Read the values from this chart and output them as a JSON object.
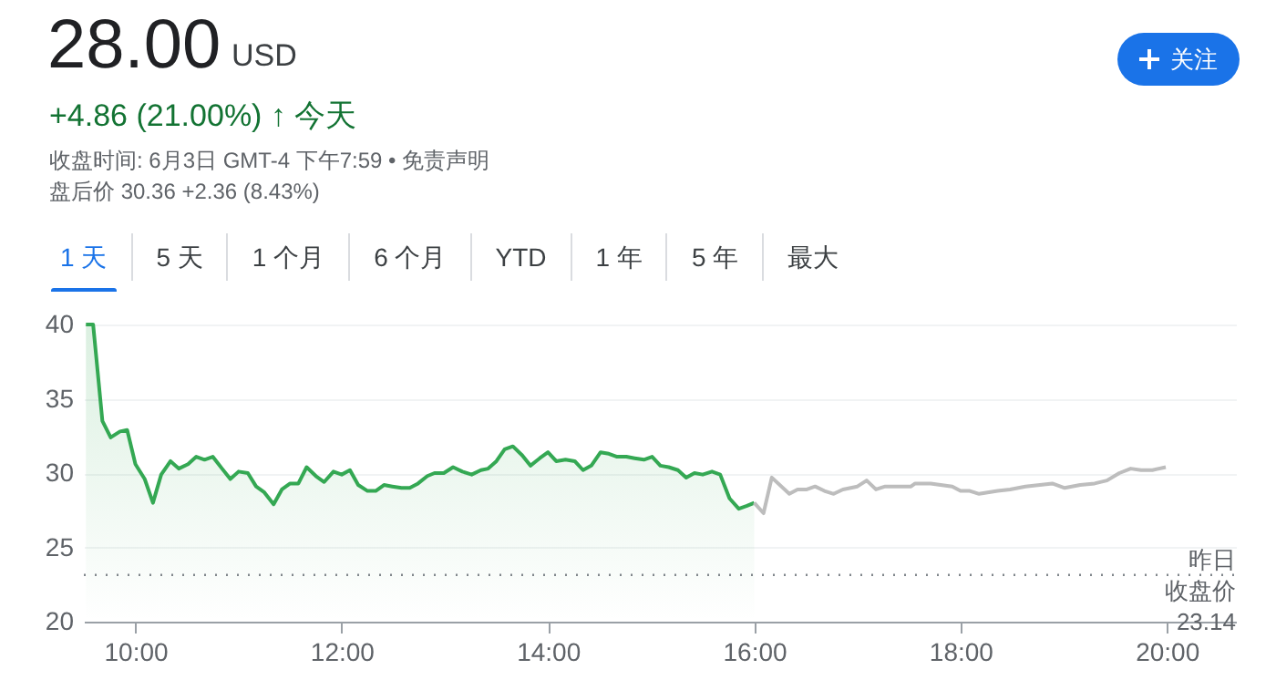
{
  "chart_data": {
    "type": "area",
    "title": "28.00",
    "annotations": [
      "USD",
      "+4.86 (21.00%) ↑ 今天",
      "收盘时间: 6月3日 GMT-4 下午7:59 • 免责声明",
      "盘后价 30.36 +2.36 (8.43%)",
      "关注",
      "1 天",
      "5 天",
      "1 个月",
      "6 个月",
      "YTD",
      "1 年",
      "5 年",
      "最大"
    ],
    "series": [
      {
        "color": "#34a853",
        "x": [
          9.52,
          9.59,
          9.68,
          9.76,
          9.85,
          9.92,
          10.0,
          10.09,
          10.17,
          10.25,
          10.34,
          10.42,
          10.51,
          10.59,
          10.67,
          10.75,
          10.84,
          10.92,
          11.0,
          11.09,
          11.17,
          11.25,
          11.34,
          11.42,
          11.5,
          11.58,
          11.66,
          11.75,
          11.83,
          11.92,
          12.0,
          12.08,
          12.16,
          12.25,
          12.33,
          12.41,
          12.49,
          12.58,
          12.66,
          12.74,
          12.83,
          12.9,
          12.99,
          13.08,
          13.17,
          13.26,
          13.35,
          13.42,
          13.5,
          13.58,
          13.66,
          13.75,
          13.83,
          13.92,
          14.0,
          14.08,
          14.17,
          14.26,
          14.34,
          14.42,
          14.51,
          14.59,
          14.67,
          14.76,
          14.84,
          14.93,
          15.01,
          15.09,
          15.17,
          15.26,
          15.34,
          15.42,
          15.5,
          15.59,
          15.67,
          15.76,
          15.85,
          15.93,
          16.0
        ],
        "values": [
          40,
          40,
          33.5,
          32.4,
          32.8,
          32.9,
          30.6,
          29.6,
          28.0,
          29.9,
          30.8,
          30.3,
          30.6,
          31.1,
          30.9,
          31.1,
          30.3,
          29.6,
          30.1,
          30.0,
          29.1,
          28.7,
          27.9,
          28.9,
          29.3,
          29.3,
          30.4,
          29.8,
          29.4,
          30.1,
          29.9,
          30.2,
          29.2,
          28.8,
          28.8,
          29.2,
          29.1,
          29.0,
          29.0,
          29.3,
          29.8,
          30.0,
          30.0,
          30.4,
          30.1,
          29.9,
          30.2,
          30.3,
          30.8,
          31.6,
          31.8,
          31.2,
          30.5,
          31.0,
          31.4,
          30.8,
          30.9,
          30.8,
          30.2,
          30.5,
          31.4,
          31.3,
          31.1,
          31.1,
          31.0,
          30.9,
          31.1,
          30.5,
          30.4,
          30.2,
          29.7,
          30.0,
          29.9,
          30.1,
          29.9,
          28.3,
          27.6,
          27.8,
          28.0
        ]
      },
      {
        "type": "line",
        "color": "#bdbdbd",
        "x": [
          16.0,
          16.09,
          16.17,
          16.34,
          16.42,
          16.51,
          16.59,
          16.68,
          16.77,
          16.86,
          17.0,
          17.09,
          17.18,
          17.27,
          17.36,
          17.52,
          17.56,
          17.71,
          17.92,
          18.0,
          18.09,
          18.18,
          18.36,
          18.48,
          18.63,
          18.77,
          18.89,
          19.01,
          19.16,
          19.3,
          19.42,
          19.54,
          19.65,
          19.75,
          19.86,
          19.99
        ],
        "values": [
          28.0,
          27.3,
          29.7,
          28.6,
          28.9,
          28.9,
          29.1,
          28.8,
          28.6,
          28.9,
          29.1,
          29.5,
          28.9,
          29.1,
          29.1,
          29.1,
          29.3,
          29.3,
          29.1,
          28.8,
          28.8,
          28.6,
          28.8,
          28.9,
          29.1,
          29.2,
          29.3,
          29.0,
          29.2,
          29.3,
          29.5,
          30.0,
          30.3,
          30.2,
          30.2,
          30.4
        ]
      }
    ],
    "xlim": [
      9.5,
      20.67
    ],
    "xticks": [
      {
        "value": 10,
        "label": "10:00"
      },
      {
        "value": 12,
        "label": "12:00"
      },
      {
        "value": 14,
        "label": "14:00"
      },
      {
        "value": 16,
        "label": "16:00"
      },
      {
        "value": 18,
        "label": "18:00"
      },
      {
        "value": 20,
        "label": "20:00"
      }
    ],
    "ylim": [
      20,
      40
    ],
    "yticks": [
      20,
      25,
      30,
      35,
      40
    ],
    "grid": "y",
    "line_style": "solid",
    "ref_lines": [
      {
        "axis": "y",
        "value": 23.14,
        "label": "昨日收盘价\n23.14",
        "line_style": "dotted",
        "color": "#80868b"
      }
    ]
  }
}
